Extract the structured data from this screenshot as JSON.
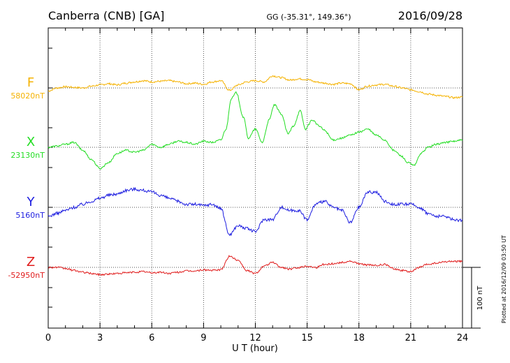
{
  "header": {
    "station": "Canberra (CNB)  [GA]",
    "coords": "GG (-35.31°, 149.36°)",
    "date": "2016/09/28"
  },
  "plotted_note": "Plotted at 2016/12/09 03:50 UT",
  "scale_label": "100 nT",
  "chart_data": {
    "type": "line",
    "title": "Canberra (CNB)  [GA]",
    "xlabel": "U T (hour)",
    "ylabel": "",
    "xlim": [
      0,
      24
    ],
    "x_ticks": [
      0,
      3,
      6,
      9,
      12,
      15,
      18,
      21,
      24
    ],
    "x_tick_labels": [
      "0",
      "3",
      "6",
      "9",
      "12",
      "15",
      "18",
      "21",
      "24"
    ],
    "grid": true,
    "scale_bar_nT": 100,
    "series": [
      {
        "name": "F",
        "baseline_label": "58020nT",
        "baseline_nT": 58020,
        "color": "#f5b200",
        "x": [
          0,
          0.5,
          1,
          1.5,
          2,
          2.5,
          3,
          3.5,
          4,
          4.5,
          5,
          5.5,
          6,
          6.5,
          7,
          7.5,
          8,
          8.5,
          9,
          9.5,
          10,
          10.5,
          11,
          11.5,
          12,
          12.5,
          13,
          13.5,
          14,
          14.5,
          15,
          15.5,
          16,
          16.5,
          17,
          17.5,
          18,
          18.5,
          19,
          19.5,
          20,
          20.5,
          21,
          21.5,
          22,
          22.5,
          23,
          23.5,
          24
        ],
        "values": [
          -5,
          0,
          2,
          1,
          0,
          3,
          5,
          7,
          5,
          8,
          10,
          12,
          10,
          11,
          12,
          10,
          7,
          8,
          6,
          10,
          12,
          -4,
          5,
          10,
          12,
          10,
          20,
          17,
          13,
          15,
          14,
          10,
          8,
          6,
          8,
          7,
          -3,
          3,
          5,
          6,
          3,
          0,
          -3,
          -6,
          -10,
          -12,
          -14,
          -16,
          -15
        ]
      },
      {
        "name": "X",
        "baseline_label": "23130nT",
        "baseline_nT": 23130,
        "color": "#22dd22",
        "x": [
          0,
          0.5,
          1,
          1.5,
          2,
          2.5,
          3,
          3.5,
          4,
          4.5,
          5,
          5.5,
          6,
          6.5,
          7,
          7.5,
          8,
          8.5,
          9,
          9.5,
          10,
          10.3,
          10.6,
          10.9,
          11.3,
          11.6,
          12,
          12.4,
          12.8,
          13.1,
          13.5,
          13.9,
          14.2,
          14.6,
          14.9,
          15.3,
          15.7,
          16,
          16.5,
          17,
          17.5,
          18,
          18.5,
          19,
          19.5,
          20,
          20.5,
          20.8,
          21.2,
          21.6,
          22,
          22.5,
          23,
          23.5,
          24
        ],
        "values": [
          0,
          2,
          5,
          8,
          -5,
          -20,
          -35,
          -25,
          -10,
          -5,
          -8,
          -5,
          5,
          0,
          5,
          10,
          8,
          5,
          10,
          8,
          12,
          30,
          80,
          90,
          50,
          15,
          30,
          8,
          45,
          70,
          55,
          22,
          35,
          60,
          30,
          45,
          35,
          28,
          12,
          15,
          20,
          25,
          30,
          20,
          12,
          -5,
          -15,
          -25,
          -30,
          -10,
          0,
          5,
          8,
          10,
          12
        ]
      },
      {
        "name": "Y",
        "baseline_label": "5160nT",
        "baseline_nT": 5160,
        "color": "#1c1ce0",
        "x": [
          0,
          0.5,
          1,
          1.5,
          2,
          2.5,
          3,
          3.5,
          4,
          4.5,
          5,
          5.5,
          6,
          6.5,
          7,
          7.5,
          8,
          8.5,
          9,
          9.5,
          10,
          10.5,
          11,
          11.5,
          12,
          12.5,
          13,
          13.5,
          14,
          14.5,
          15,
          15.5,
          16,
          16.5,
          17,
          17.5,
          18,
          18.5,
          19,
          19.5,
          20,
          20.5,
          21,
          21.5,
          22,
          22.5,
          23,
          23.5,
          24
        ],
        "values": [
          -15,
          -10,
          -5,
          0,
          5,
          10,
          15,
          20,
          22,
          28,
          30,
          28,
          25,
          20,
          15,
          10,
          5,
          5,
          3,
          5,
          -2,
          -45,
          -30,
          -35,
          -40,
          -20,
          -20,
          0,
          -5,
          -5,
          -20,
          5,
          10,
          0,
          -5,
          -25,
          0,
          25,
          25,
          10,
          5,
          5,
          5,
          0,
          -10,
          -15,
          -15,
          -20,
          -22
        ]
      },
      {
        "name": "Z",
        "baseline_label": "-52950nT",
        "baseline_nT": -52950,
        "color": "#e01c1c",
        "x": [
          0,
          0.5,
          1,
          1.5,
          2,
          2.5,
          3,
          3.5,
          4,
          4.5,
          5,
          5.5,
          6,
          6.5,
          7,
          7.5,
          8,
          8.5,
          9,
          9.5,
          10,
          10.5,
          11,
          11.5,
          12,
          12.5,
          13,
          13.5,
          14,
          14.5,
          15,
          15.5,
          16,
          16.5,
          17,
          17.5,
          18,
          18.5,
          19,
          19.5,
          20,
          20.5,
          21,
          21.5,
          22,
          22.5,
          23,
          23.5,
          24
        ],
        "values": [
          0,
          0,
          -2,
          -5,
          -8,
          -10,
          -12,
          -11,
          -10,
          -9,
          -8,
          -7,
          -9,
          -8,
          -10,
          -8,
          -6,
          -6,
          -4,
          -5,
          -4,
          18,
          12,
          -5,
          -10,
          2,
          8,
          0,
          -3,
          0,
          2,
          0,
          5,
          6,
          8,
          10,
          6,
          4,
          3,
          5,
          -2,
          -5,
          -7,
          0,
          5,
          7,
          9,
          10,
          10
        ]
      }
    ]
  }
}
